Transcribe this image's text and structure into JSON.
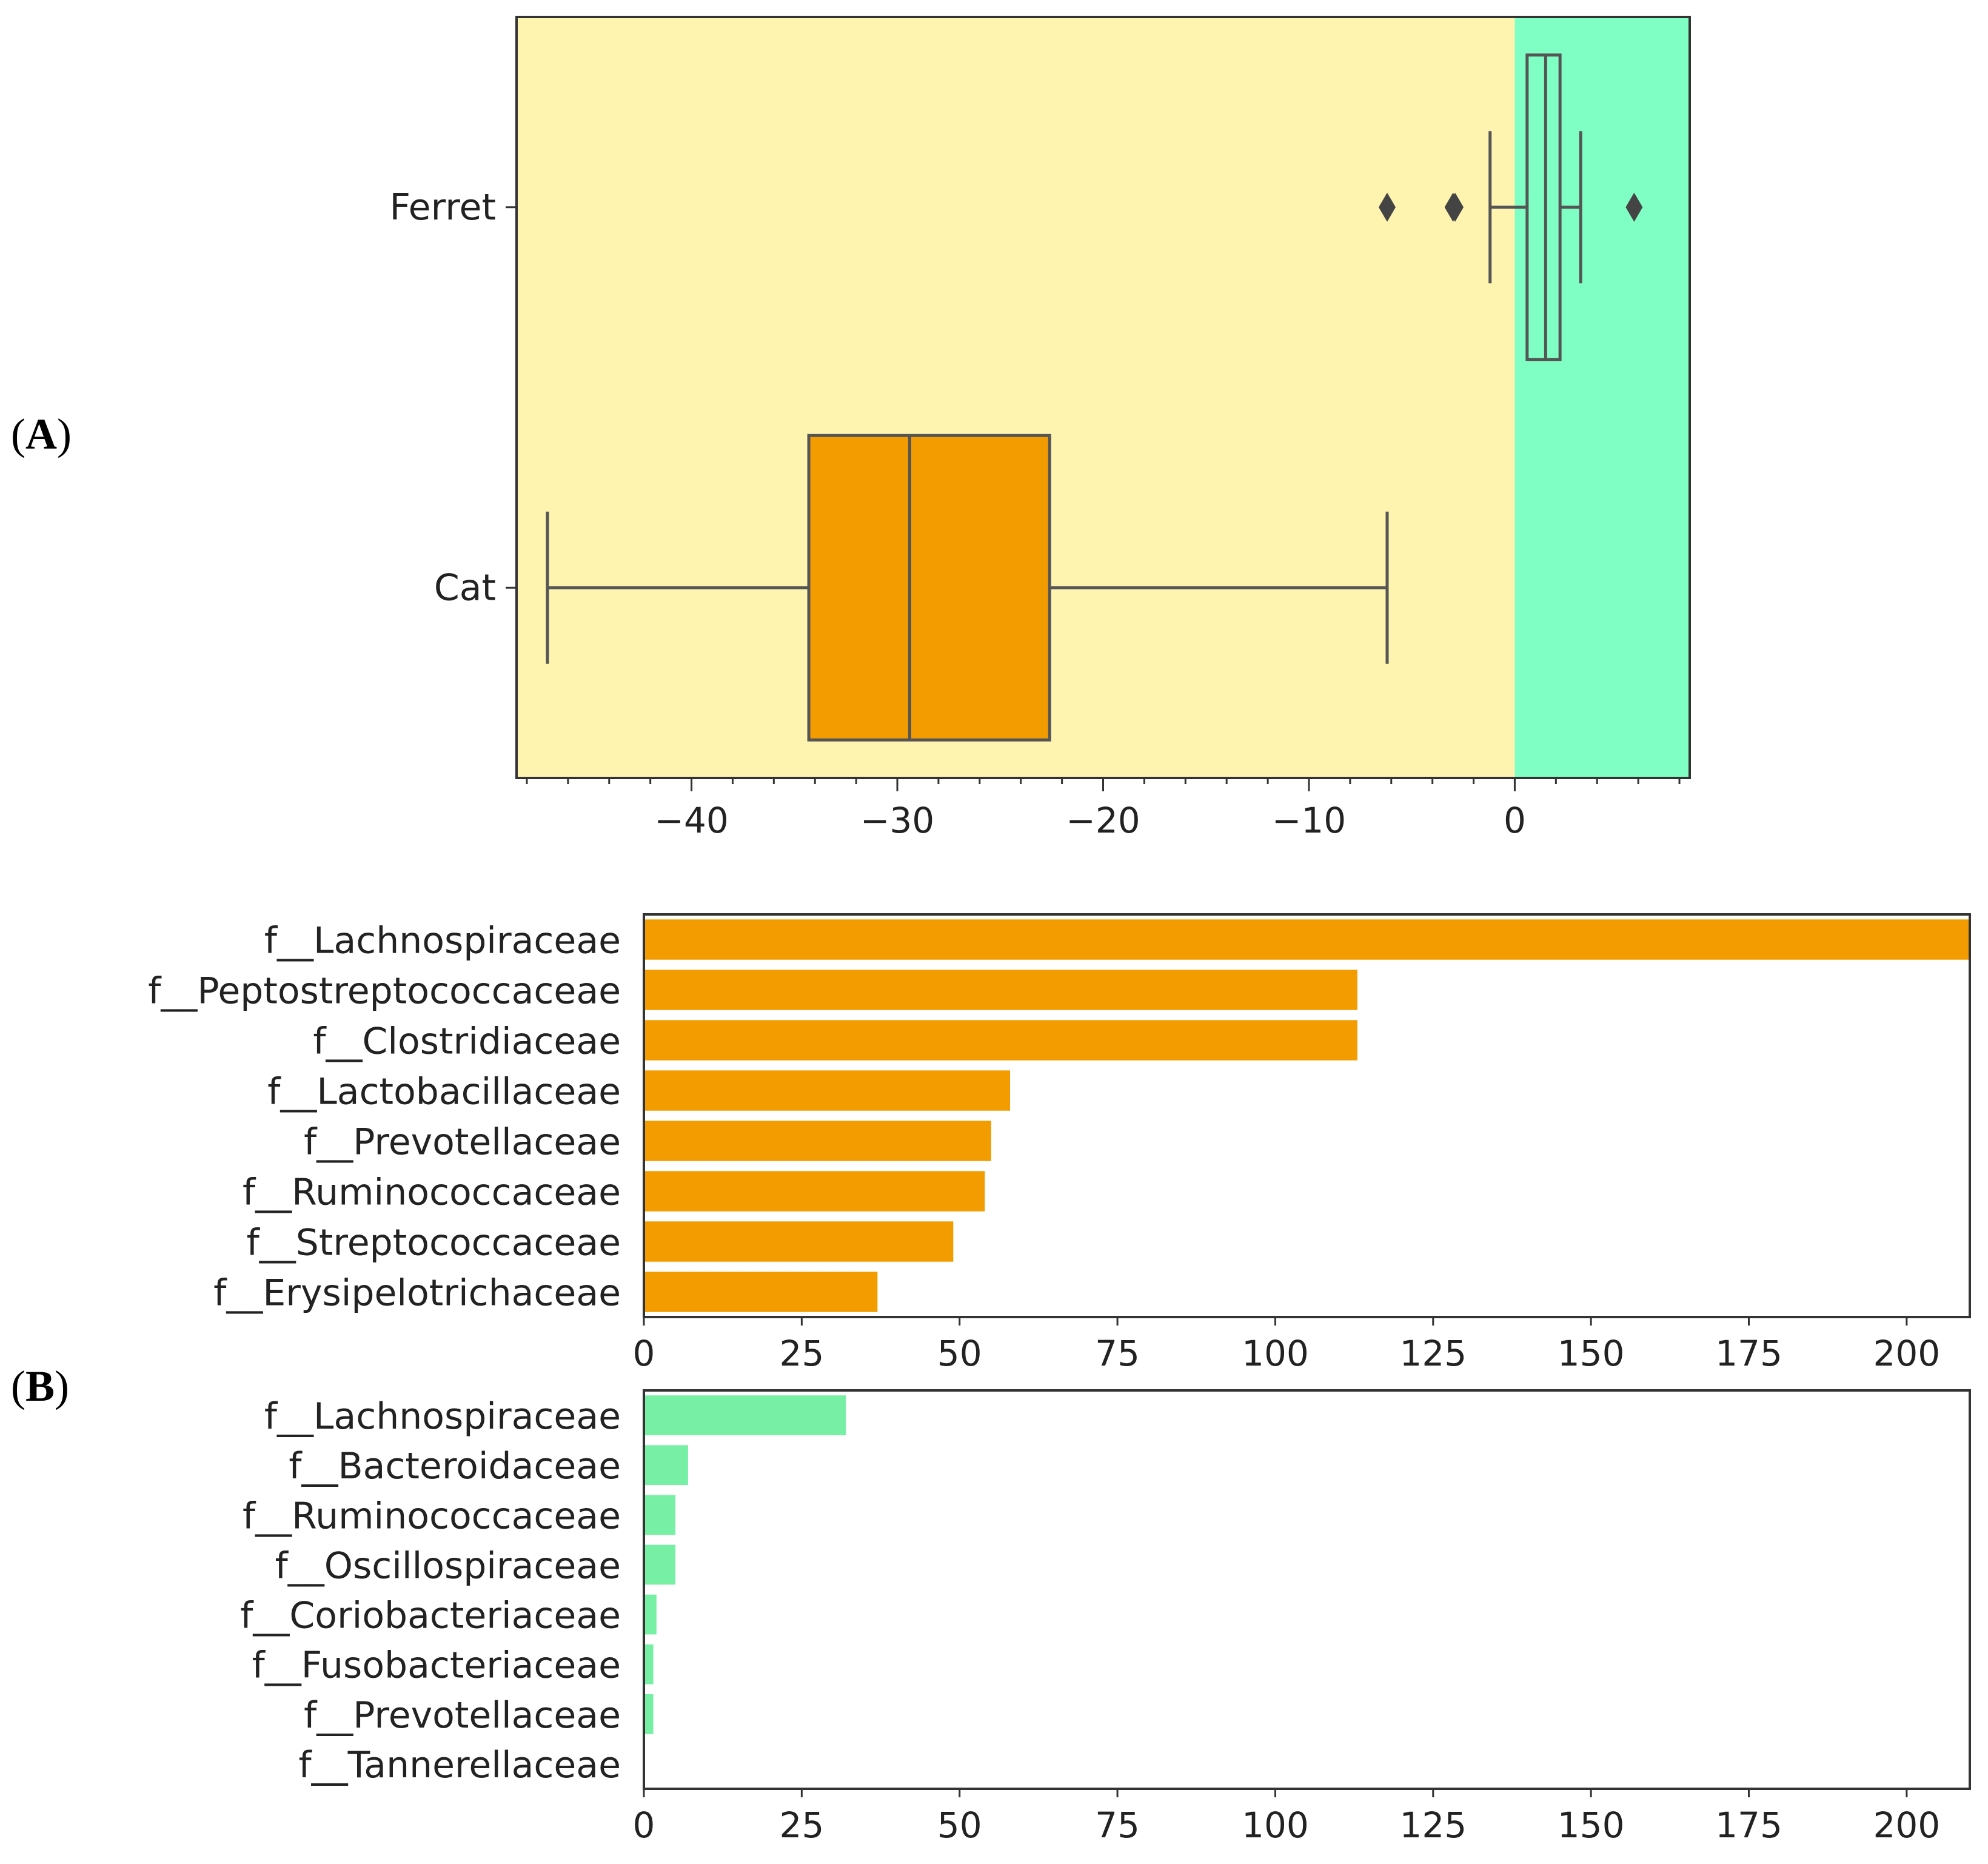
{
  "panels": {
    "a_label": "A",
    "b_label": "B"
  },
  "chart_data": [
    {
      "type": "boxplot",
      "panel": "A",
      "orientation": "horizontal",
      "categories": [
        "Ferret",
        "Cat"
      ],
      "xlim": [
        -48.5,
        8.5
      ],
      "xticks": [
        -40,
        -30,
        -20,
        -10,
        0
      ],
      "xtick_labels": [
        "−40",
        "−30",
        "−20",
        "−10",
        "0"
      ],
      "minor_tick_step": 2,
      "background_regions": [
        {
          "from": -48.5,
          "to": 0,
          "color": "#fff3b0"
        },
        {
          "from": 0,
          "to": 8.5,
          "color": "#80ffc4"
        }
      ],
      "boxes": [
        {
          "category": "Ferret",
          "whisker_low": -1.2,
          "q1": 0.6,
          "median": 1.5,
          "q3": 2.2,
          "whisker_high": 3.2,
          "outliers": [
            -6.2,
            -3.0,
            -2.9,
            5.8
          ],
          "color": "#80ffc4"
        },
        {
          "category": "Cat",
          "whisker_low": -47.0,
          "q1": -34.3,
          "median": -29.4,
          "q3": -22.6,
          "whisker_high": -6.2,
          "outliers": [],
          "color": "#f39c00"
        }
      ]
    },
    {
      "type": "bar",
      "orientation": "horizontal",
      "panel": "B-top",
      "categories": [
        "f__Lachnospiraceae",
        "f__Peptostreptococcaceae",
        "f__Clostridiaceae",
        "f__Lactobacillaceae",
        "f__Prevotellaceae",
        "f__Ruminococcaceae",
        "f__Streptococcaceae",
        "f__Erysipelotrichaceae"
      ],
      "values": [
        210,
        113,
        113,
        58,
        55,
        54,
        49,
        37
      ],
      "xlim": [
        0,
        210
      ],
      "xticks": [
        0,
        25,
        50,
        75,
        100,
        125,
        150,
        175,
        200
      ],
      "xtick_labels": [
        "0",
        "25",
        "50",
        "75",
        "100",
        "125",
        "150",
        "175",
        "200"
      ],
      "color": "#f39c00"
    },
    {
      "type": "bar",
      "orientation": "horizontal",
      "panel": "B-bottom",
      "categories": [
        "f__Lachnospiraceae",
        "f__Bacteroidaceae",
        "f__Ruminococcaceae",
        "f__Oscillospiraceae",
        "f__Coriobacteriaceae",
        "f__Fusobacteriaceae",
        "f__Prevotellaceae",
        "f__Tannerellaceae"
      ],
      "values": [
        32,
        7,
        5,
        5,
        2,
        1.5,
        1.5,
        0
      ],
      "xlim": [
        0,
        210
      ],
      "xticks": [
        0,
        25,
        50,
        75,
        100,
        125,
        150,
        175,
        200
      ],
      "xtick_labels": [
        "0",
        "25",
        "50",
        "75",
        "100",
        "125",
        "150",
        "175",
        "200"
      ],
      "color": "#77f0a6"
    }
  ]
}
